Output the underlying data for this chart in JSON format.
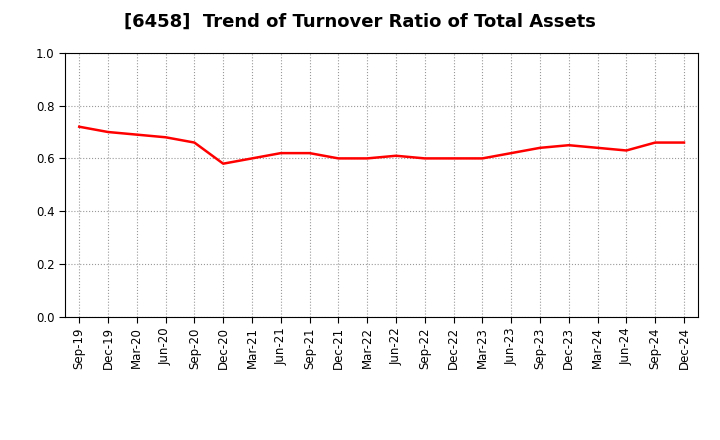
{
  "title": "[6458]  Trend of Turnover Ratio of Total Assets",
  "x_labels": [
    "Sep-19",
    "Dec-19",
    "Mar-20",
    "Jun-20",
    "Sep-20",
    "Dec-20",
    "Mar-21",
    "Jun-21",
    "Sep-21",
    "Dec-21",
    "Mar-22",
    "Jun-22",
    "Sep-22",
    "Dec-22",
    "Mar-23",
    "Jun-23",
    "Sep-23",
    "Dec-23",
    "Mar-24",
    "Jun-24",
    "Sep-24",
    "Dec-24"
  ],
  "y_values": [
    0.72,
    0.7,
    0.69,
    0.68,
    0.66,
    0.58,
    0.6,
    0.62,
    0.62,
    0.6,
    0.6,
    0.61,
    0.6,
    0.6,
    0.6,
    0.62,
    0.64,
    0.65,
    0.64,
    0.63,
    0.66,
    0.66
  ],
  "line_color": "#FF0000",
  "line_width": 1.8,
  "ylim": [
    0.0,
    1.0
  ],
  "yticks": [
    0.0,
    0.2,
    0.4,
    0.6,
    0.8,
    1.0
  ],
  "background_color": "#FFFFFF",
  "grid_color": "#999999",
  "title_fontsize": 13,
  "tick_fontsize": 8.5
}
